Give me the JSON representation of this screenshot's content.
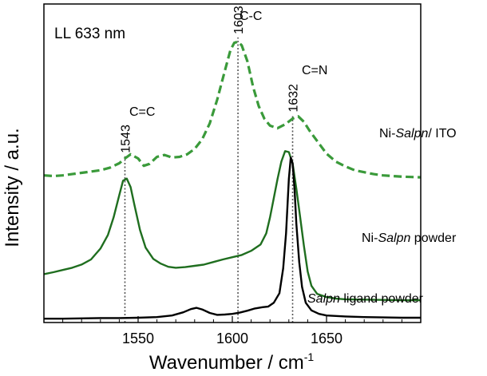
{
  "chart_data": {
    "type": "line",
    "condition_label": "LL 633 nm",
    "xlabel": "Wavenumber / cm",
    "xlabel_superscript": "-1",
    "ylabel": "Intensity / a.u.",
    "xlim": [
      1500,
      1700
    ],
    "ylim": [
      0,
      1
    ],
    "x_ticks": [
      1550,
      1600,
      1650
    ],
    "grid": false,
    "series": [
      {
        "label_parts": [
          "Ni-",
          "Salpn",
          "/ ITO"
        ],
        "color": "#3a9a3a",
        "style": "dashed",
        "points": [
          [
            1500,
            0.462
          ],
          [
            1505,
            0.46
          ],
          [
            1510,
            0.462
          ],
          [
            1515,
            0.466
          ],
          [
            1520,
            0.47
          ],
          [
            1525,
            0.474
          ],
          [
            1530,
            0.478
          ],
          [
            1535,
            0.486
          ],
          [
            1540,
            0.5
          ],
          [
            1543,
            0.515
          ],
          [
            1546,
            0.528
          ],
          [
            1550,
            0.515
          ],
          [
            1553,
            0.492
          ],
          [
            1556,
            0.498
          ],
          [
            1560,
            0.52
          ],
          [
            1564,
            0.526
          ],
          [
            1568,
            0.518
          ],
          [
            1572,
            0.52
          ],
          [
            1576,
            0.528
          ],
          [
            1580,
            0.545
          ],
          [
            1584,
            0.575
          ],
          [
            1588,
            0.625
          ],
          [
            1592,
            0.7
          ],
          [
            1596,
            0.79
          ],
          [
            1599,
            0.855
          ],
          [
            1601,
            0.878
          ],
          [
            1603,
            0.882
          ],
          [
            1605,
            0.87
          ],
          [
            1608,
            0.82
          ],
          [
            1611,
            0.74
          ],
          [
            1614,
            0.68
          ],
          [
            1617,
            0.64
          ],
          [
            1620,
            0.618
          ],
          [
            1624,
            0.61
          ],
          [
            1628,
            0.622
          ],
          [
            1632,
            0.64
          ],
          [
            1635,
            0.647
          ],
          [
            1638,
            0.63
          ],
          [
            1641,
            0.602
          ],
          [
            1645,
            0.57
          ],
          [
            1650,
            0.53
          ],
          [
            1655,
            0.505
          ],
          [
            1660,
            0.49
          ],
          [
            1665,
            0.478
          ],
          [
            1670,
            0.472
          ],
          [
            1675,
            0.466
          ],
          [
            1680,
            0.462
          ],
          [
            1685,
            0.46
          ],
          [
            1690,
            0.458
          ],
          [
            1695,
            0.457
          ],
          [
            1700,
            0.456
          ]
        ]
      },
      {
        "label_parts": [
          "Ni-",
          "Salpn",
          " powder"
        ],
        "color": "#1f6e1f",
        "style": "solid",
        "points": [
          [
            1500,
            0.152
          ],
          [
            1505,
            0.158
          ],
          [
            1510,
            0.165
          ],
          [
            1515,
            0.172
          ],
          [
            1520,
            0.182
          ],
          [
            1525,
            0.198
          ],
          [
            1530,
            0.232
          ],
          [
            1534,
            0.275
          ],
          [
            1537,
            0.33
          ],
          [
            1540,
            0.4
          ],
          [
            1542,
            0.445
          ],
          [
            1544,
            0.452
          ],
          [
            1546,
            0.425
          ],
          [
            1548,
            0.37
          ],
          [
            1551,
            0.29
          ],
          [
            1554,
            0.235
          ],
          [
            1558,
            0.2
          ],
          [
            1562,
            0.185
          ],
          [
            1566,
            0.175
          ],
          [
            1570,
            0.172
          ],
          [
            1575,
            0.174
          ],
          [
            1580,
            0.178
          ],
          [
            1585,
            0.182
          ],
          [
            1590,
            0.19
          ],
          [
            1595,
            0.198
          ],
          [
            1600,
            0.205
          ],
          [
            1605,
            0.212
          ],
          [
            1610,
            0.225
          ],
          [
            1615,
            0.245
          ],
          [
            1618,
            0.28
          ],
          [
            1620,
            0.33
          ],
          [
            1622,
            0.39
          ],
          [
            1624,
            0.45
          ],
          [
            1626,
            0.505
          ],
          [
            1628,
            0.538
          ],
          [
            1630,
            0.535
          ],
          [
            1632,
            0.5
          ],
          [
            1634,
            0.42
          ],
          [
            1636,
            0.33
          ],
          [
            1638,
            0.24
          ],
          [
            1640,
            0.16
          ],
          [
            1642,
            0.115
          ],
          [
            1645,
            0.09
          ],
          [
            1650,
            0.08
          ],
          [
            1655,
            0.075
          ],
          [
            1660,
            0.073
          ],
          [
            1670,
            0.072
          ],
          [
            1680,
            0.071
          ],
          [
            1690,
            0.07
          ],
          [
            1700,
            0.07
          ]
        ]
      },
      {
        "label_parts": [
          "",
          "Salpn",
          " ligand powder"
        ],
        "color": "#000000",
        "style": "solid",
        "points": [
          [
            1500,
            0.012
          ],
          [
            1510,
            0.012
          ],
          [
            1520,
            0.013
          ],
          [
            1530,
            0.014
          ],
          [
            1540,
            0.014
          ],
          [
            1550,
            0.015
          ],
          [
            1560,
            0.017
          ],
          [
            1568,
            0.022
          ],
          [
            1574,
            0.032
          ],
          [
            1578,
            0.042
          ],
          [
            1581,
            0.046
          ],
          [
            1584,
            0.041
          ],
          [
            1588,
            0.03
          ],
          [
            1592,
            0.024
          ],
          [
            1596,
            0.025
          ],
          [
            1600,
            0.027
          ],
          [
            1604,
            0.031
          ],
          [
            1608,
            0.037
          ],
          [
            1612,
            0.044
          ],
          [
            1616,
            0.048
          ],
          [
            1619,
            0.05
          ],
          [
            1622,
            0.062
          ],
          [
            1625,
            0.092
          ],
          [
            1627,
            0.17
          ],
          [
            1628.5,
            0.28
          ],
          [
            1630,
            0.45
          ],
          [
            1631,
            0.518
          ],
          [
            1632,
            0.5
          ],
          [
            1633,
            0.42
          ],
          [
            1634,
            0.31
          ],
          [
            1635.5,
            0.19
          ],
          [
            1637,
            0.112
          ],
          [
            1639,
            0.062
          ],
          [
            1642,
            0.038
          ],
          [
            1646,
            0.027
          ],
          [
            1650,
            0.022
          ],
          [
            1660,
            0.019
          ],
          [
            1670,
            0.017
          ],
          [
            1680,
            0.016
          ],
          [
            1690,
            0.015
          ],
          [
            1700,
            0.015
          ]
        ]
      }
    ],
    "peaks": [
      {
        "x": 1543,
        "label": "1543",
        "assignment": "C=C",
        "top": 0.522
      },
      {
        "x": 1603,
        "label": "1603",
        "assignment": "C-C",
        "top": 0.895
      },
      {
        "x": 1632,
        "label": "1632",
        "assignment": "C=N",
        "top": 0.65
      }
    ]
  }
}
